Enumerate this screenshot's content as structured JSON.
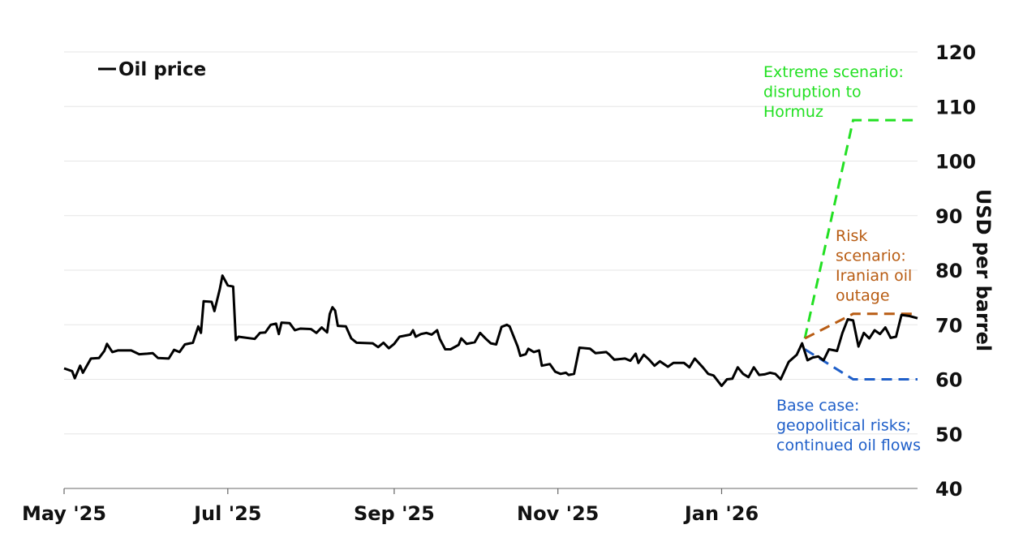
{
  "chart_data": {
    "type": "line",
    "legend": {
      "label": "Oil price",
      "placement": "top-left"
    },
    "ylabel": "USD per barrel",
    "ylim": [
      40,
      120
    ],
    "yticks": [
      40,
      50,
      60,
      70,
      80,
      90,
      100,
      110,
      120
    ],
    "grid": true,
    "x_range": [
      "2025-05-01",
      "2026-03-15"
    ],
    "xticks": [
      {
        "date": "2025-05-01",
        "label": "May '25"
      },
      {
        "date": "2025-07-01",
        "label": "Jul '25"
      },
      {
        "date": "2025-09-01",
        "label": "Sep '25"
      },
      {
        "date": "2025-11-01",
        "label": "Nov '25"
      },
      {
        "date": "2026-01-01",
        "label": "Jan '26"
      }
    ],
    "series": [
      {
        "name": "Oil price",
        "color": "#000000",
        "points": [
          [
            "2025-05-01",
            62.0
          ],
          [
            "2025-05-04",
            61.5
          ],
          [
            "2025-05-05",
            60.2
          ],
          [
            "2025-05-07",
            62.5
          ],
          [
            "2025-05-08",
            61.2
          ],
          [
            "2025-05-11",
            63.8
          ],
          [
            "2025-05-14",
            63.9
          ],
          [
            "2025-05-16",
            65.2
          ],
          [
            "2025-05-17",
            66.5
          ],
          [
            "2025-05-19",
            65.0
          ],
          [
            "2025-05-21",
            65.3
          ],
          [
            "2025-05-26",
            65.3
          ],
          [
            "2025-05-29",
            64.6
          ],
          [
            "2025-06-01",
            64.7
          ],
          [
            "2025-06-03",
            64.8
          ],
          [
            "2025-06-05",
            63.9
          ],
          [
            "2025-06-09",
            63.8
          ],
          [
            "2025-06-11",
            65.4
          ],
          [
            "2025-06-13",
            65.0
          ],
          [
            "2025-06-15",
            66.4
          ],
          [
            "2025-06-18",
            66.7
          ],
          [
            "2025-06-20",
            69.7
          ],
          [
            "2025-06-21",
            68.5
          ],
          [
            "2025-06-22",
            74.3
          ],
          [
            "2025-06-25",
            74.2
          ],
          [
            "2025-06-26",
            72.5
          ],
          [
            "2025-06-28",
            76.5
          ],
          [
            "2025-06-29",
            79.0
          ],
          [
            "2025-07-01",
            77.2
          ],
          [
            "2025-07-03",
            77.0
          ],
          [
            "2025-07-04",
            67.2
          ],
          [
            "2025-07-05",
            67.8
          ],
          [
            "2025-07-11",
            67.4
          ],
          [
            "2025-07-13",
            68.5
          ],
          [
            "2025-07-15",
            68.6
          ],
          [
            "2025-07-17",
            70.0
          ],
          [
            "2025-07-19",
            70.2
          ],
          [
            "2025-07-20",
            68.3
          ],
          [
            "2025-07-21",
            70.4
          ],
          [
            "2025-07-24",
            70.3
          ],
          [
            "2025-07-26",
            69.0
          ],
          [
            "2025-07-28",
            69.3
          ],
          [
            "2025-08-01",
            69.2
          ],
          [
            "2025-08-03",
            68.5
          ],
          [
            "2025-08-05",
            69.5
          ],
          [
            "2025-08-07",
            68.6
          ],
          [
            "2025-08-08",
            72.0
          ],
          [
            "2025-08-09",
            73.2
          ],
          [
            "2025-08-10",
            72.6
          ],
          [
            "2025-08-11",
            69.8
          ],
          [
            "2025-08-14",
            69.7
          ],
          [
            "2025-08-16",
            67.5
          ],
          [
            "2025-08-18",
            66.7
          ],
          [
            "2025-08-24",
            66.6
          ],
          [
            "2025-08-26",
            65.9
          ],
          [
            "2025-08-28",
            66.7
          ],
          [
            "2025-08-30",
            65.7
          ],
          [
            "2025-09-01",
            66.5
          ],
          [
            "2025-09-03",
            67.8
          ],
          [
            "2025-09-07",
            68.2
          ],
          [
            "2025-09-08",
            69.0
          ],
          [
            "2025-09-09",
            67.8
          ],
          [
            "2025-09-11",
            68.3
          ],
          [
            "2025-09-13",
            68.5
          ],
          [
            "2025-09-15",
            68.2
          ],
          [
            "2025-09-17",
            69.0
          ],
          [
            "2025-09-18",
            67.4
          ],
          [
            "2025-09-20",
            65.5
          ],
          [
            "2025-09-22",
            65.5
          ],
          [
            "2025-09-25",
            66.3
          ],
          [
            "2025-09-26",
            67.5
          ],
          [
            "2025-09-28",
            66.5
          ],
          [
            "2025-10-01",
            66.8
          ],
          [
            "2025-10-03",
            68.5
          ],
          [
            "2025-10-05",
            67.5
          ],
          [
            "2025-10-07",
            66.6
          ],
          [
            "2025-10-09",
            66.4
          ],
          [
            "2025-10-11",
            69.6
          ],
          [
            "2025-10-13",
            70.0
          ],
          [
            "2025-10-14",
            69.7
          ],
          [
            "2025-10-17",
            66.0
          ],
          [
            "2025-10-18",
            64.3
          ],
          [
            "2025-10-20",
            64.6
          ],
          [
            "2025-10-21",
            65.6
          ],
          [
            "2025-10-23",
            65.0
          ],
          [
            "2025-10-25",
            65.3
          ],
          [
            "2025-10-26",
            62.5
          ],
          [
            "2025-10-29",
            62.8
          ],
          [
            "2025-10-31",
            61.4
          ],
          [
            "2025-11-02",
            61.0
          ],
          [
            "2025-11-04",
            61.2
          ],
          [
            "2025-11-05",
            60.8
          ],
          [
            "2025-11-07",
            61.0
          ],
          [
            "2025-11-09",
            65.8
          ],
          [
            "2025-11-13",
            65.6
          ],
          [
            "2025-11-15",
            64.8
          ],
          [
            "2025-11-19",
            65.0
          ],
          [
            "2025-11-20",
            64.6
          ],
          [
            "2025-11-22",
            63.6
          ],
          [
            "2025-11-26",
            63.8
          ],
          [
            "2025-11-28",
            63.4
          ],
          [
            "2025-11-30",
            64.7
          ],
          [
            "2025-12-01",
            63.0
          ],
          [
            "2025-12-03",
            64.5
          ],
          [
            "2025-12-05",
            63.6
          ],
          [
            "2025-12-07",
            62.5
          ],
          [
            "2025-12-09",
            63.3
          ],
          [
            "2025-12-12",
            62.3
          ],
          [
            "2025-12-14",
            63.0
          ],
          [
            "2025-12-18",
            63.0
          ],
          [
            "2025-12-20",
            62.2
          ],
          [
            "2025-12-22",
            63.8
          ],
          [
            "2025-12-25",
            62.2
          ],
          [
            "2025-12-27",
            61.0
          ],
          [
            "2025-12-29",
            60.7
          ],
          [
            "2026-01-01",
            58.8
          ],
          [
            "2026-01-03",
            60.0
          ],
          [
            "2026-01-05",
            60.1
          ],
          [
            "2026-01-07",
            62.2
          ],
          [
            "2026-01-09",
            61.0
          ],
          [
            "2026-01-11",
            60.4
          ],
          [
            "2026-01-13",
            62.2
          ],
          [
            "2026-01-15",
            60.8
          ],
          [
            "2026-01-17",
            60.9
          ],
          [
            "2026-01-19",
            61.2
          ],
          [
            "2026-01-21",
            61.0
          ],
          [
            "2026-01-23",
            60.0
          ],
          [
            "2026-01-26",
            63.2
          ],
          [
            "2026-01-29",
            64.5
          ],
          [
            "2026-01-31",
            66.6
          ],
          [
            "2026-02-02",
            63.5
          ],
          [
            "2026-02-04",
            64.0
          ],
          [
            "2026-02-06",
            64.2
          ],
          [
            "2026-02-08",
            63.5
          ],
          [
            "2026-02-10",
            65.5
          ],
          [
            "2026-02-13",
            65.2
          ],
          [
            "2026-02-15",
            68.5
          ],
          [
            "2026-02-17",
            71.0
          ],
          [
            "2026-02-19",
            70.8
          ],
          [
            "2026-02-21",
            66.0
          ],
          [
            "2026-02-23",
            68.5
          ],
          [
            "2026-02-25",
            67.5
          ],
          [
            "2026-02-27",
            69.0
          ],
          [
            "2026-03-01",
            68.3
          ],
          [
            "2026-03-03",
            69.5
          ],
          [
            "2026-03-05",
            67.6
          ],
          [
            "2026-03-07",
            67.8
          ],
          [
            "2026-03-09",
            71.8
          ],
          [
            "2026-03-12",
            71.6
          ],
          [
            "2026-03-15",
            71.2
          ]
        ]
      }
    ],
    "scenarios": [
      {
        "label_lines": [
          "Extreme scenario:",
          "disruption to",
          "Hormuz"
        ],
        "color": "#22e022",
        "points": [
          [
            "2026-02-01",
            67.5
          ],
          [
            "2026-02-19",
            107.5
          ],
          [
            "2026-03-15",
            107.5
          ]
        ]
      },
      {
        "label_lines": [
          "Risk",
          "scenario:",
          "Iranian oil",
          "outage"
        ],
        "color": "#b85c13",
        "points": [
          [
            "2026-02-01",
            67.5
          ],
          [
            "2026-02-19",
            72.0
          ],
          [
            "2026-03-15",
            72.0
          ]
        ]
      },
      {
        "label_lines": [
          "Base case:",
          "geopolitical risks;",
          "continued oil flows"
        ],
        "color": "#1f5fc9",
        "points": [
          [
            "2026-02-01",
            65.5
          ],
          [
            "2026-02-19",
            60.0
          ],
          [
            "2026-03-15",
            60.0
          ]
        ]
      }
    ]
  }
}
